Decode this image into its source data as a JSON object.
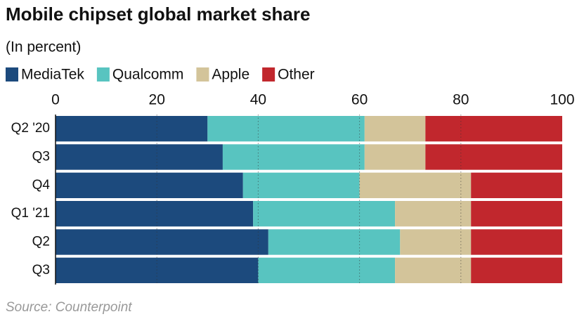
{
  "chart_data": {
    "type": "stacked-bar-horizontal",
    "title": "Mobile chipset global market share",
    "subtitle": "(In percent)",
    "source": "Source: Counterpoint",
    "categories": [
      "Q2 '20",
      "Q3",
      "Q4",
      "Q1 '21",
      "Q2",
      "Q3"
    ],
    "series": [
      {
        "name": "MediaTek",
        "color": "#1c4a7d",
        "values": [
          30,
          33,
          37,
          39,
          42,
          40
        ]
      },
      {
        "name": "Qualcomm",
        "color": "#58c4c0",
        "values": [
          31,
          28,
          23,
          28,
          26,
          27
        ]
      },
      {
        "name": "Apple",
        "color": "#d3c49a",
        "values": [
          12,
          12,
          22,
          15,
          14,
          15
        ]
      },
      {
        "name": "Other",
        "color": "#c1272d",
        "values": [
          27,
          27,
          18,
          18,
          18,
          18
        ]
      }
    ],
    "xlim": [
      0,
      100
    ],
    "xticks": [
      0,
      20,
      40,
      60,
      80,
      100
    ],
    "grid": true
  }
}
